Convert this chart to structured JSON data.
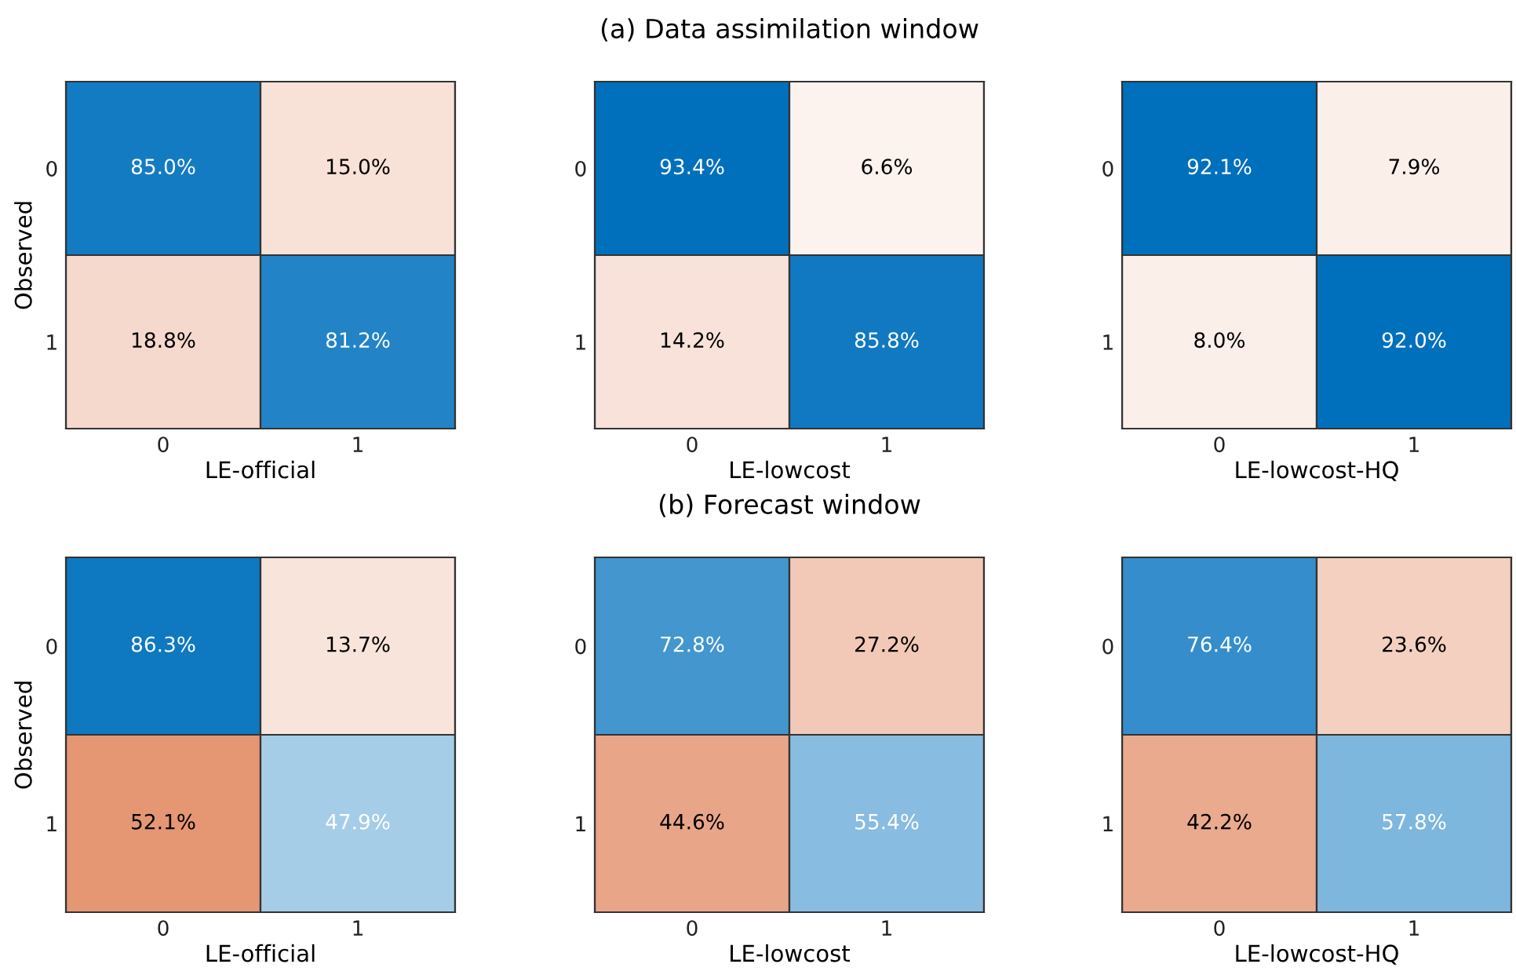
{
  "chart_data": [
    {
      "type": "heatmap",
      "xlabel": "LE-official",
      "ylabel": "Observed",
      "categories": [
        "0",
        "1"
      ],
      "y_categories": [
        "0",
        "1"
      ],
      "cells": [
        [
          85.0,
          15.0
        ],
        [
          18.8,
          81.2
        ]
      ],
      "cell_labels": [
        [
          "85.0%",
          "15.0%"
        ],
        [
          "18.8%",
          "81.2%"
        ]
      ]
    },
    {
      "type": "heatmap",
      "title": "(a) Data assimilation window",
      "xlabel": "LE-lowcost",
      "categories": [
        "0",
        "1"
      ],
      "y_categories": [
        "0",
        "1"
      ],
      "cells": [
        [
          93.4,
          6.6
        ],
        [
          14.2,
          85.8
        ]
      ],
      "cell_labels": [
        [
          "93.4%",
          "6.6%"
        ],
        [
          "14.2%",
          "85.8%"
        ]
      ]
    },
    {
      "type": "heatmap",
      "xlabel": "LE-lowcost-HQ",
      "categories": [
        "0",
        "1"
      ],
      "y_categories": [
        "0",
        "1"
      ],
      "cells": [
        [
          92.1,
          7.9
        ],
        [
          8.0,
          92.0
        ]
      ],
      "cell_labels": [
        [
          "92.1%",
          "7.9%"
        ],
        [
          "8.0%",
          "92.0%"
        ]
      ]
    },
    {
      "type": "heatmap",
      "xlabel": "LE-official",
      "ylabel": "Observed",
      "categories": [
        "0",
        "1"
      ],
      "y_categories": [
        "0",
        "1"
      ],
      "cells": [
        [
          86.3,
          13.7
        ],
        [
          52.1,
          47.9
        ]
      ],
      "cell_labels": [
        [
          "86.3%",
          "13.7%"
        ],
        [
          "52.1%",
          "47.9%"
        ]
      ]
    },
    {
      "type": "heatmap",
      "title": "(b) Forecast window",
      "xlabel": "LE-lowcost",
      "categories": [
        "0",
        "1"
      ],
      "y_categories": [
        "0",
        "1"
      ],
      "cells": [
        [
          72.8,
          27.2
        ],
        [
          44.6,
          55.4
        ]
      ],
      "cell_labels": [
        [
          "72.8%",
          "27.2%"
        ],
        [
          "44.6%",
          "55.4%"
        ]
      ]
    },
    {
      "type": "heatmap",
      "xlabel": "LE-lowcost-HQ",
      "categories": [
        "0",
        "1"
      ],
      "y_categories": [
        "0",
        "1"
      ],
      "cells": [
        [
          76.4,
          23.6
        ],
        [
          42.2,
          57.8
        ]
      ],
      "cell_labels": [
        [
          "76.4%",
          "23.6%"
        ],
        [
          "42.2%",
          "57.8%"
        ]
      ]
    }
  ]
}
